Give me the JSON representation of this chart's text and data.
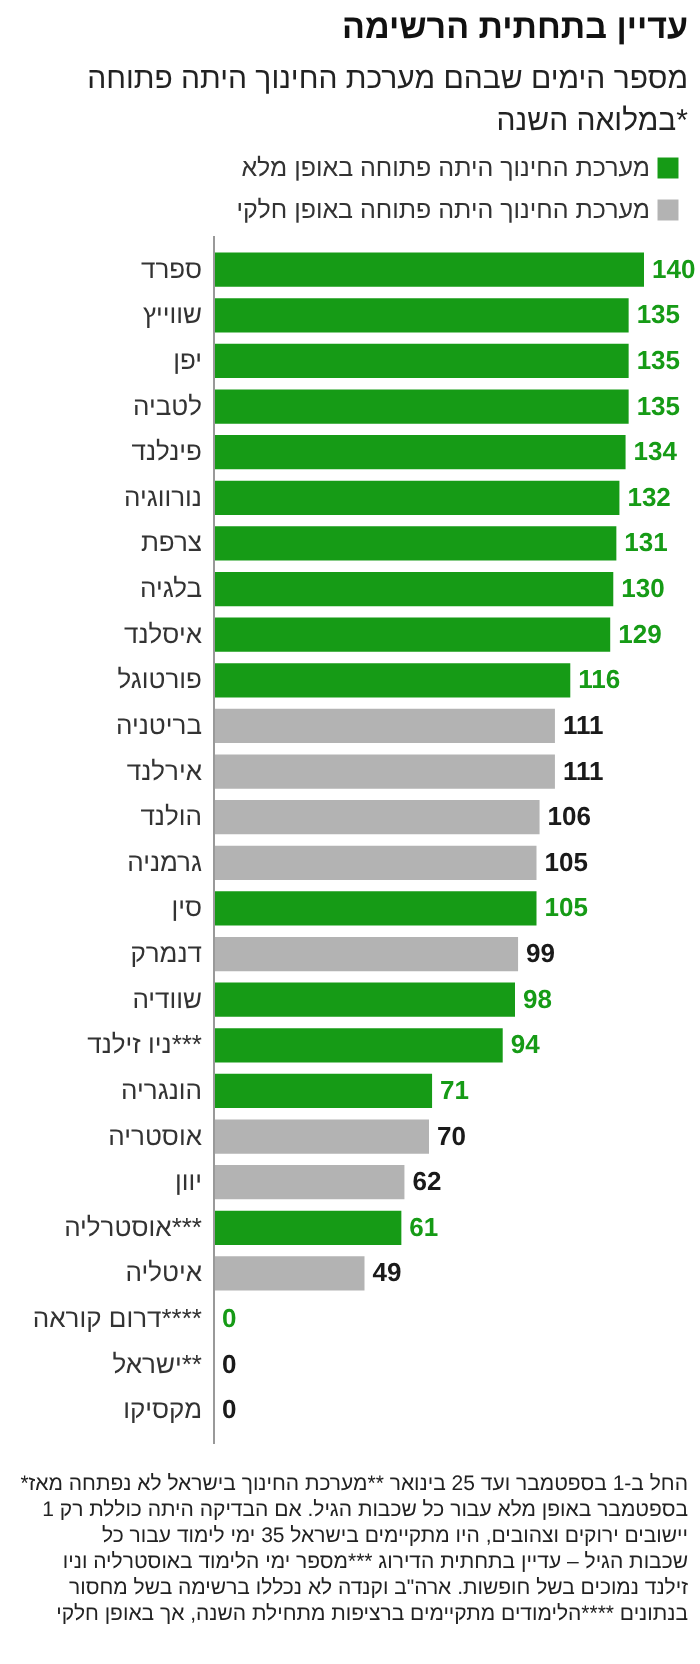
{
  "chart_data": {
    "type": "bar",
    "orientation": "horizontal",
    "stacked": true,
    "data_labels": true,
    "legend": "top right",
    "title": "עדיין בתחתית הרשימה",
    "subtitle": "מספר הימים שבהם מערכת החינוך היתה פתוחה במלואה השנה*",
    "categories": [
      "ספרד",
      "שווייץ",
      "יפן",
      "לטביה",
      "פינלנד",
      "נורווגיה",
      "צרפת",
      "בלגיה",
      "איסלנד",
      "פורטוגל",
      "בריטניה",
      "אירלנד",
      "הולנד",
      "גרמניה",
      "סין",
      "דנמרק",
      "שוודיה",
      "ניו זילנד***",
      "הונגריה",
      "אוסטריה",
      "יוון",
      "אוסטרליה***",
      "איטליה",
      "דרום קוראה****",
      "ישראל**",
      "מקסיקו"
    ],
    "series": [
      {
        "name": "מערכת החינוך היתה פתוחה באופן מלא",
        "color": "#169b16",
        "values": [
          140,
          135,
          135,
          135,
          134,
          132,
          131,
          130,
          129,
          116,
          null,
          null,
          null,
          null,
          105,
          null,
          98,
          94,
          71,
          null,
          null,
          61,
          null,
          0,
          null,
          null
        ]
      },
      {
        "name": "מערכת החינוך היתה פתוחה באופן חלקי",
        "color": "#b3b3b3",
        "values": [
          null,
          null,
          null,
          null,
          null,
          null,
          null,
          null,
          null,
          null,
          111,
          111,
          106,
          105,
          null,
          99,
          null,
          null,
          null,
          70,
          62,
          null,
          49,
          null,
          0,
          0
        ]
      }
    ],
    "annotations": [
      "*החל ב-1 בספטמבר ועד 25 בינואר **מערכת החינוך בישראל לא נפתחה מאז 1 בספטמבר באופן מלא עבור כל שכבות הגיל. אם הבדיקה היתה כוללת רק יישובים ירוקים וצהובים, היו מתקיימים בישראל 35 ימי לימוד עבור כל שכבות הגיל – עדיין בתחתית הדירוג ***מספר ימי הלימוד באוסטרליה וניו זילנד נמוכים בשל חופשות. ארה\"ב וקנדה לא נכללו ברשימה בשל מחסור בנתונים ****הלימודים מתקיימים ברציפות מתחילת השנה, אך באופן חלקי"
    ]
  }
}
